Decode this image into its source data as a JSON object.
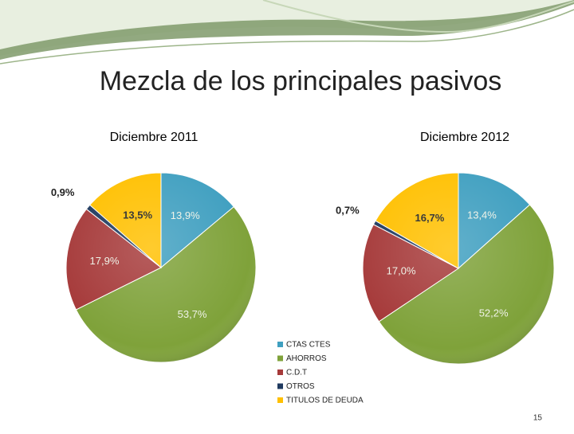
{
  "title": "Mezcla de los principales pasivos",
  "page_number": "15",
  "chart_data": [
    {
      "type": "pie",
      "title": "Diciembre 2011",
      "categories": [
        "CTAS CTES",
        "AHORROS",
        "C.D.T",
        "OTROS",
        "TITULOS DE DEUDA"
      ],
      "values": [
        13.9,
        53.7,
        17.9,
        0.9,
        13.5
      ],
      "value_labels": [
        "13,9%",
        "53,7%",
        "17,9%",
        "0,9%",
        "13,5%"
      ],
      "colors": [
        "#3f9fc0",
        "#7fa23a",
        "#a63a3a",
        "#1f3a5f",
        "#ffc000"
      ]
    },
    {
      "type": "pie",
      "title": "Diciembre 2012",
      "categories": [
        "CTAS CTES",
        "AHORROS",
        "C.D.T",
        "OTROS",
        "TITULOS DE DEUDA"
      ],
      "values": [
        13.4,
        52.2,
        17.0,
        0.7,
        16.7
      ],
      "value_labels": [
        "13,4%",
        "52,2%",
        "17,0%",
        "0,7%",
        "16,7%"
      ],
      "colors": [
        "#3f9fc0",
        "#7fa23a",
        "#a63a3a",
        "#1f3a5f",
        "#ffc000"
      ]
    }
  ]
}
